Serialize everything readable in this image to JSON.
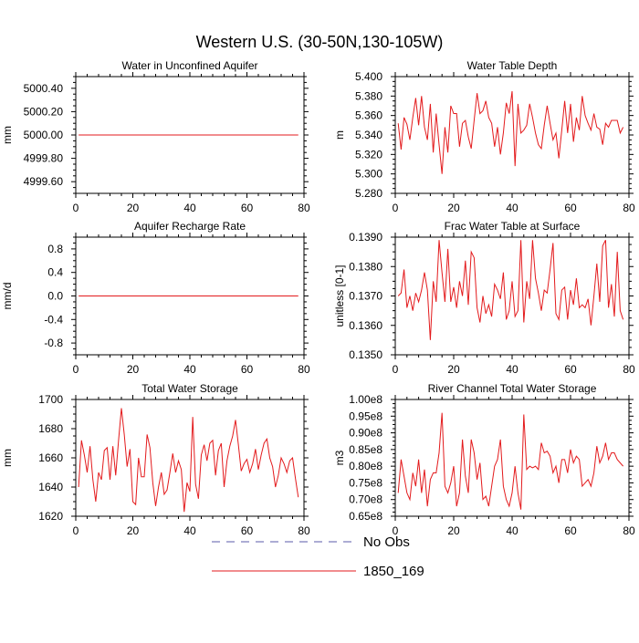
{
  "figure": {
    "title": "Western U.S. (30-50N,130-105W)"
  },
  "legend": {
    "entries": [
      {
        "label": "No Obs",
        "style": "dashed",
        "color": "#5a5aa8"
      },
      {
        "label": "1850_169",
        "style": "solid",
        "color": "#e31a1c"
      }
    ]
  },
  "chart_data": [
    {
      "type": "line",
      "title": "Water in Unconfined Aquifer",
      "ylabel": "mm",
      "xlabel": "",
      "xlim": [
        0,
        80
      ],
      "ylim": [
        4999.5,
        5000.5
      ],
      "xticks": [
        0,
        20,
        40,
        60,
        80
      ],
      "xtick_labels": [
        "0",
        "20",
        "40",
        "60",
        "80"
      ],
      "yticks": [
        4999.6,
        4999.8,
        5000.0,
        5000.2,
        5000.4
      ],
      "ytick_labels": [
        "4999.60",
        "4999.80",
        "5000.00",
        "5000.20",
        "5000.40"
      ],
      "series": [
        {
          "name": "1850_169",
          "color": "#e31a1c",
          "x_start": 1,
          "x_step": 1,
          "values": [
            5000,
            5000,
            5000,
            5000,
            5000,
            5000,
            5000,
            5000,
            5000,
            5000,
            5000,
            5000,
            5000,
            5000,
            5000,
            5000,
            5000,
            5000,
            5000,
            5000,
            5000,
            5000,
            5000,
            5000,
            5000,
            5000,
            5000,
            5000,
            5000,
            5000,
            5000,
            5000,
            5000,
            5000,
            5000,
            5000,
            5000,
            5000,
            5000,
            5000,
            5000,
            5000,
            5000,
            5000,
            5000,
            5000,
            5000,
            5000,
            5000,
            5000,
            5000,
            5000,
            5000,
            5000,
            5000,
            5000,
            5000,
            5000,
            5000,
            5000,
            5000,
            5000,
            5000,
            5000,
            5000,
            5000,
            5000,
            5000,
            5000,
            5000,
            5000,
            5000,
            5000,
            5000,
            5000,
            5000,
            5000,
            5000
          ]
        }
      ]
    },
    {
      "type": "line",
      "title": "Water Table Depth",
      "ylabel": "m",
      "xlabel": "",
      "xlim": [
        0,
        80
      ],
      "ylim": [
        5.28,
        5.4
      ],
      "xticks": [
        0,
        20,
        40,
        60,
        80
      ],
      "xtick_labels": [
        "0",
        "20",
        "40",
        "60",
        "80"
      ],
      "yticks": [
        5.28,
        5.3,
        5.32,
        5.34,
        5.36,
        5.38,
        5.4
      ],
      "ytick_labels": [
        "5.280",
        "5.300",
        "5.320",
        "5.340",
        "5.360",
        "5.380",
        "5.400"
      ],
      "series": [
        {
          "name": "1850_169",
          "color": "#e31a1c",
          "x_start": 1,
          "x_step": 1,
          "values": [
            5.352,
            5.325,
            5.358,
            5.351,
            5.335,
            5.358,
            5.378,
            5.35,
            5.38,
            5.348,
            5.335,
            5.372,
            5.322,
            5.362,
            5.33,
            5.3,
            5.348,
            5.322,
            5.37,
            5.362,
            5.362,
            5.328,
            5.352,
            5.355,
            5.338,
            5.326,
            5.355,
            5.383,
            5.362,
            5.365,
            5.375,
            5.358,
            5.352,
            5.328,
            5.348,
            5.32,
            5.342,
            5.373,
            5.362,
            5.385,
            5.308,
            5.372,
            5.342,
            5.345,
            5.35,
            5.372,
            5.358,
            5.342,
            5.33,
            5.326,
            5.35,
            5.37,
            5.352,
            5.335,
            5.342,
            5.316,
            5.345,
            5.375,
            5.342,
            5.372,
            5.333,
            5.358,
            5.345,
            5.38,
            5.36,
            5.352,
            5.345,
            5.362,
            5.348,
            5.346,
            5.33,
            5.352,
            5.348,
            5.355,
            5.355,
            5.355,
            5.342,
            5.348
          ]
        }
      ]
    },
    {
      "type": "line",
      "title": "Aquifer Recharge Rate",
      "ylabel": "mm/d",
      "xlabel": "",
      "xlim": [
        0,
        80
      ],
      "ylim": [
        -1.0,
        1.0
      ],
      "xticks": [
        0,
        20,
        40,
        60,
        80
      ],
      "xtick_labels": [
        "0",
        "20",
        "40",
        "60",
        "80"
      ],
      "yticks": [
        -0.8,
        -0.4,
        0.0,
        0.4,
        0.8
      ],
      "ytick_labels": [
        "-0.8",
        "-0.4",
        "0.0",
        "0.4",
        "0.8"
      ],
      "series": [
        {
          "name": "1850_169",
          "color": "#e31a1c",
          "x_start": 1,
          "x_step": 1,
          "values": [
            0,
            0,
            0,
            0,
            0,
            0,
            0,
            0,
            0,
            0,
            0,
            0,
            0,
            0,
            0,
            0,
            0,
            0,
            0,
            0,
            0,
            0,
            0,
            0,
            0,
            0,
            0,
            0,
            0,
            0,
            0,
            0,
            0,
            0,
            0,
            0,
            0,
            0,
            0,
            0,
            0,
            0,
            0,
            0,
            0,
            0,
            0,
            0,
            0,
            0,
            0,
            0,
            0,
            0,
            0,
            0,
            0,
            0,
            0,
            0,
            0,
            0,
            0,
            0,
            0,
            0,
            0,
            0,
            0,
            0,
            0,
            0,
            0,
            0,
            0,
            0,
            0,
            0
          ]
        }
      ]
    },
    {
      "type": "line",
      "title": "Frac Water Table at Surface",
      "ylabel": "unitless [0-1]",
      "xlabel": "",
      "xlim": [
        0,
        80
      ],
      "ylim": [
        0.135,
        0.139
      ],
      "xticks": [
        0,
        20,
        40,
        60,
        80
      ],
      "xtick_labels": [
        "0",
        "20",
        "40",
        "60",
        "80"
      ],
      "yticks": [
        0.135,
        0.136,
        0.137,
        0.138,
        0.139
      ],
      "ytick_labels": [
        "0.1350",
        "0.1360",
        "0.1370",
        "0.1380",
        "0.1390"
      ],
      "series": [
        {
          "name": "1850_169",
          "color": "#e31a1c",
          "x_start": 1,
          "x_step": 1,
          "values": [
            0.137,
            0.1371,
            0.1379,
            0.1366,
            0.137,
            0.1365,
            0.1371,
            0.1368,
            0.1372,
            0.1378,
            0.1372,
            0.1355,
            0.1375,
            0.1368,
            0.1389,
            0.1378,
            0.1368,
            0.1386,
            0.1368,
            0.1373,
            0.1366,
            0.1375,
            0.137,
            0.1382,
            0.1367,
            0.1385,
            0.1383,
            0.1366,
            0.1361,
            0.137,
            0.1364,
            0.1367,
            0.1363,
            0.1374,
            0.1372,
            0.1369,
            0.1378,
            0.1362,
            0.1365,
            0.1375,
            0.1363,
            0.1365,
            0.1389,
            0.1361,
            0.1375,
            0.1369,
            0.1389,
            0.1376,
            0.1371,
            0.1365,
            0.1372,
            0.1371,
            0.1379,
            0.1388,
            0.1364,
            0.1362,
            0.1372,
            0.1373,
            0.1362,
            0.1372,
            0.1367,
            0.1376,
            0.1366,
            0.1367,
            0.1366,
            0.1369,
            0.136,
            0.137,
            0.1381,
            0.1368,
            0.1387,
            0.1389,
            0.1366,
            0.1374,
            0.1363,
            0.1385,
            0.1365,
            0.1362
          ]
        }
      ]
    },
    {
      "type": "line",
      "title": "Total Water Storage",
      "ylabel": "mm",
      "xlabel": "",
      "xlim": [
        0,
        80
      ],
      "ylim": [
        1620,
        1700
      ],
      "xticks": [
        0,
        20,
        40,
        60,
        80
      ],
      "xtick_labels": [
        "0",
        "20",
        "40",
        "60",
        "80"
      ],
      "yticks": [
        1620,
        1640,
        1660,
        1680,
        1700
      ],
      "ytick_labels": [
        "1620",
        "1640",
        "1660",
        "1680",
        "1700"
      ],
      "series": [
        {
          "name": "1850_169",
          "color": "#e31a1c",
          "x_start": 1,
          "x_step": 1,
          "values": [
            1640,
            1672,
            1662,
            1650,
            1668,
            1645,
            1630,
            1650,
            1645,
            1665,
            1667,
            1645,
            1668,
            1648,
            1672,
            1694,
            1676,
            1654,
            1666,
            1630,
            1628,
            1660,
            1647,
            1647,
            1676,
            1667,
            1643,
            1627,
            1640,
            1650,
            1635,
            1638,
            1650,
            1663,
            1650,
            1658,
            1652,
            1623,
            1643,
            1637,
            1688,
            1642,
            1632,
            1662,
            1669,
            1658,
            1670,
            1672,
            1648,
            1665,
            1670,
            1640,
            1658,
            1668,
            1675,
            1686,
            1669,
            1651,
            1656,
            1659,
            1650,
            1656,
            1666,
            1652,
            1662,
            1670,
            1673,
            1660,
            1654,
            1640,
            1648,
            1660,
            1656,
            1650,
            1658,
            1660,
            1646,
            1633
          ]
        }
      ]
    },
    {
      "type": "line",
      "title": "River Channel Total Water Storage",
      "ylabel": "m3",
      "xlabel": "",
      "xlim": [
        0,
        80
      ],
      "ylim": [
        65000000.0,
        100000000.0
      ],
      "xticks": [
        0,
        20,
        40,
        60,
        80
      ],
      "xtick_labels": [
        "0",
        "20",
        "40",
        "60",
        "80"
      ],
      "yticks": [
        65000000.0,
        70000000.0,
        75000000.0,
        80000000.0,
        85000000.0,
        90000000.0,
        95000000.0,
        100000000.0
      ],
      "ytick_labels": [
        "0.65e8",
        "0.70e8",
        "0.75e8",
        "0.80e8",
        "0.85e8",
        "0.90e8",
        "0.95e8",
        "1.00e8"
      ],
      "series": [
        {
          "name": "1850_169",
          "color": "#e31a1c",
          "x_start": 1,
          "x_step": 1,
          "values": [
            72000000.0,
            82000000.0,
            77000000.0,
            72000000.0,
            70000000.0,
            78000000.0,
            74000000.0,
            82000000.0,
            72000000.0,
            79000000.0,
            68000000.0,
            76000000.0,
            78000000.0,
            78000000.0,
            84000000.0,
            96000000.0,
            74000000.0,
            72000000.0,
            75000000.0,
            80000000.0,
            68000000.0,
            72000000.0,
            88000000.0,
            77000000.0,
            72000000.0,
            88000000.0,
            84000000.0,
            76000000.0,
            81000000.0,
            70000000.0,
            71000000.0,
            68000000.0,
            74000000.0,
            80000000.0,
            82000000.0,
            88000000.0,
            74000000.0,
            70000000.0,
            68000000.0,
            72000000.0,
            80000000.0,
            72000000.0,
            67000000.0,
            95500000.0,
            79000000.0,
            80000000.0,
            79500000.0,
            80000000.0,
            79000000.0,
            87000000.0,
            84000000.0,
            84500000.0,
            83000000.0,
            78000000.0,
            80000000.0,
            75000000.0,
            82000000.0,
            82000000.0,
            78000000.0,
            85000000.0,
            81000000.0,
            83000000.0,
            82000000.0,
            74000000.0,
            75000000.0,
            76000000.0,
            74000000.0,
            78000000.0,
            86000000.0,
            81000000.0,
            83000000.0,
            87000000.0,
            82000000.0,
            84000000.0,
            84000000.0,
            82000000.0,
            81000000.0,
            80000000.0
          ]
        }
      ]
    }
  ]
}
